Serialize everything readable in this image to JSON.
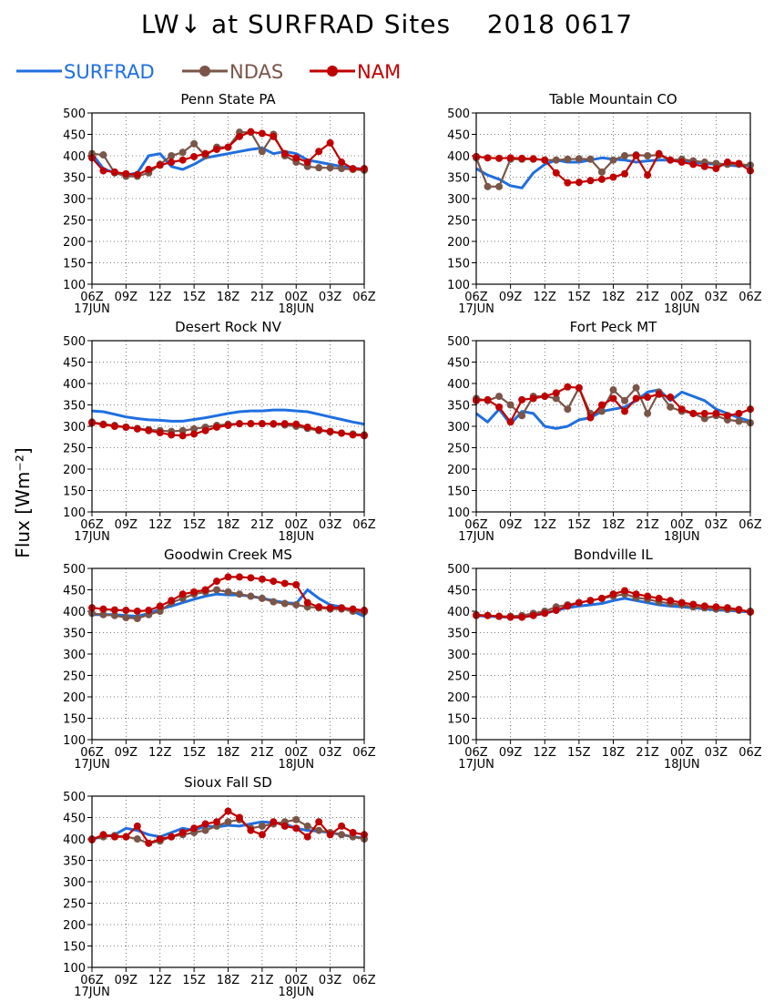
{
  "title": "LW↓ at SURFRAD Sites    2018 0617",
  "y_axis_title": "Flux [Wm⁻²]",
  "colors": {
    "SURFRAD": "#1f6fe0",
    "NDAS": "#7a5548",
    "NAM": "#c00000"
  },
  "legend": [
    {
      "name": "SURFRAD",
      "color": "#1f6fe0",
      "marker": false
    },
    {
      "name": "NDAS",
      "color": "#7a5548",
      "marker": true
    },
    {
      "name": "NAM",
      "color": "#c00000",
      "marker": true
    }
  ],
  "chart_data": [
    {
      "type": "line",
      "title": "Penn State PA",
      "x_tick_labels": [
        "06Z",
        "09Z",
        "12Z",
        "15Z",
        "18Z",
        "21Z",
        "00Z",
        "03Z",
        "06Z"
      ],
      "x_date_labels": [
        {
          "at": "06Z",
          "text": "17JUN"
        },
        {
          "at": "00Z",
          "text": "18JUN"
        }
      ],
      "x_hours": [
        0,
        1,
        2,
        3,
        4,
        5,
        6,
        7,
        8,
        9,
        10,
        11,
        12,
        13,
        14,
        15,
        16,
        17,
        18,
        19,
        20,
        21,
        22,
        23,
        24
      ],
      "ylim": [
        100,
        500
      ],
      "y_ticks": [
        100,
        150,
        200,
        250,
        300,
        350,
        400,
        450,
        500
      ],
      "grid": true,
      "series": [
        {
          "name": "SURFRAD",
          "values": [
            405,
            370,
            360,
            355,
            360,
            400,
            405,
            375,
            368,
            380,
            395,
            400,
            405,
            410,
            415,
            418,
            405,
            410,
            405,
            390,
            385,
            380,
            375,
            372,
            368
          ]
        },
        {
          "name": "NDAS",
          "values": [
            405,
            402,
            360,
            352,
            352,
            360,
            380,
            400,
            408,
            428,
            400,
            420,
            420,
            455,
            455,
            410,
            450,
            400,
            385,
            375,
            372,
            372,
            370,
            368,
            366
          ]
        },
        {
          "name": "NAM",
          "values": [
            395,
            365,
            362,
            358,
            356,
            368,
            378,
            385,
            390,
            398,
            405,
            415,
            420,
            445,
            456,
            452,
            445,
            405,
            395,
            385,
            410,
            430,
            385,
            370,
            370
          ]
        }
      ]
    },
    {
      "type": "line",
      "title": "Table Mountain CO",
      "x_tick_labels": [
        "06Z",
        "09Z",
        "12Z",
        "15Z",
        "18Z",
        "21Z",
        "00Z",
        "03Z",
        "06Z"
      ],
      "x_date_labels": [
        {
          "at": "06Z",
          "text": "17JUN"
        },
        {
          "at": "00Z",
          "text": "18JUN"
        }
      ],
      "x_hours": [
        0,
        1,
        2,
        3,
        4,
        5,
        6,
        7,
        8,
        9,
        10,
        11,
        12,
        13,
        14,
        15,
        16,
        17,
        18,
        19,
        20,
        21,
        22,
        23,
        24
      ],
      "ylim": [
        100,
        500
      ],
      "y_ticks": [
        100,
        150,
        200,
        250,
        300,
        350,
        400,
        450,
        500
      ],
      "grid": true,
      "series": [
        {
          "name": "SURFRAD",
          "values": [
            370,
            355,
            345,
            330,
            325,
            360,
            380,
            390,
            385,
            385,
            390,
            395,
            392,
            390,
            385,
            388,
            390,
            390,
            385,
            385,
            382,
            380,
            378,
            376,
            378
          ]
        },
        {
          "name": "NDAS",
          "values": [
            395,
            328,
            328,
            392,
            392,
            392,
            390,
            390,
            392,
            393,
            392,
            362,
            390,
            400,
            402,
            400,
            402,
            390,
            392,
            388,
            385,
            382,
            380,
            380,
            378
          ]
        },
        {
          "name": "NAM",
          "values": [
            398,
            395,
            394,
            395,
            394,
            393,
            390,
            360,
            337,
            338,
            342,
            345,
            350,
            358,
            400,
            355,
            405,
            390,
            385,
            380,
            375,
            370,
            385,
            382,
            365
          ]
        }
      ]
    },
    {
      "type": "line",
      "title": "Desert Rock NV",
      "x_tick_labels": [
        "06Z",
        "09Z",
        "12Z",
        "15Z",
        "18Z",
        "21Z",
        "00Z",
        "03Z",
        "06Z"
      ],
      "x_date_labels": [
        {
          "at": "06Z",
          "text": "17JUN"
        },
        {
          "at": "00Z",
          "text": "18JUN"
        }
      ],
      "x_hours": [
        0,
        1,
        2,
        3,
        4,
        5,
        6,
        7,
        8,
        9,
        10,
        11,
        12,
        13,
        14,
        15,
        16,
        17,
        18,
        19,
        20,
        21,
        22,
        23,
        24
      ],
      "ylim": [
        100,
        500
      ],
      "y_ticks": [
        100,
        150,
        200,
        250,
        300,
        350,
        400,
        450,
        500
      ],
      "grid": true,
      "series": [
        {
          "name": "SURFRAD",
          "values": [
            336,
            334,
            328,
            322,
            318,
            315,
            314,
            312,
            312,
            316,
            320,
            325,
            330,
            334,
            336,
            336,
            338,
            338,
            336,
            334,
            328,
            322,
            316,
            310,
            305
          ]
        },
        {
          "name": "NDAS",
          "values": [
            310,
            305,
            302,
            298,
            295,
            292,
            290,
            288,
            290,
            294,
            298,
            302,
            305,
            306,
            306,
            306,
            305,
            303,
            300,
            295,
            290,
            287,
            284,
            282,
            280
          ]
        },
        {
          "name": "NAM",
          "values": [
            308,
            304,
            300,
            298,
            294,
            290,
            285,
            280,
            278,
            282,
            290,
            298,
            302,
            306,
            306,
            306,
            306,
            306,
            305,
            298,
            292,
            288,
            284,
            280,
            278
          ]
        }
      ]
    },
    {
      "type": "line",
      "title": "Fort Peck MT",
      "x_tick_labels": [
        "06Z",
        "09Z",
        "12Z",
        "15Z",
        "18Z",
        "21Z",
        "00Z",
        "03Z",
        "06Z"
      ],
      "x_date_labels": [
        {
          "at": "06Z",
          "text": "17JUN"
        },
        {
          "at": "00Z",
          "text": "18JUN"
        }
      ],
      "x_hours": [
        0,
        1,
        2,
        3,
        4,
        5,
        6,
        7,
        8,
        9,
        10,
        11,
        12,
        13,
        14,
        15,
        16,
        17,
        18,
        19,
        20,
        21,
        22,
        23,
        24
      ],
      "ylim": [
        100,
        500
      ],
      "y_ticks": [
        100,
        150,
        200,
        250,
        300,
        350,
        400,
        450,
        500
      ],
      "grid": true,
      "series": [
        {
          "name": "SURFRAD",
          "values": [
            330,
            310,
            340,
            305,
            335,
            330,
            300,
            295,
            300,
            315,
            320,
            335,
            340,
            345,
            360,
            380,
            385,
            360,
            380,
            370,
            360,
            340,
            330,
            320,
            312
          ]
        },
        {
          "name": "NDAS",
          "values": [
            365,
            360,
            370,
            350,
            325,
            370,
            370,
            365,
            340,
            390,
            330,
            335,
            385,
            360,
            390,
            330,
            380,
            345,
            335,
            330,
            318,
            325,
            315,
            312,
            308
          ]
        },
        {
          "name": "NAM",
          "values": [
            360,
            362,
            345,
            310,
            362,
            365,
            370,
            378,
            392,
            390,
            320,
            350,
            365,
            335,
            365,
            368,
            375,
            368,
            340,
            330,
            330,
            330,
            325,
            330,
            340
          ]
        }
      ]
    },
    {
      "type": "line",
      "title": "Goodwin Creek MS",
      "x_tick_labels": [
        "06Z",
        "09Z",
        "12Z",
        "15Z",
        "18Z",
        "21Z",
        "00Z",
        "03Z",
        "06Z"
      ],
      "x_date_labels": [
        {
          "at": "06Z",
          "text": "17JUN"
        },
        {
          "at": "00Z",
          "text": "18JUN"
        }
      ],
      "x_hours": [
        0,
        1,
        2,
        3,
        4,
        5,
        6,
        7,
        8,
        9,
        10,
        11,
        12,
        13,
        14,
        15,
        16,
        17,
        18,
        19,
        20,
        21,
        22,
        23,
        24
      ],
      "ylim": [
        100,
        500
      ],
      "y_ticks": [
        100,
        150,
        200,
        250,
        300,
        350,
        400,
        450,
        500
      ],
      "grid": true,
      "series": [
        {
          "name": "SURFRAD",
          "values": [
            392,
            392,
            392,
            390,
            388,
            395,
            405,
            412,
            420,
            428,
            435,
            440,
            438,
            438,
            435,
            430,
            425,
            420,
            418,
            450,
            430,
            415,
            410,
            400,
            388
          ]
        },
        {
          "name": "NDAS",
          "values": [
            395,
            392,
            390,
            385,
            383,
            392,
            400,
            420,
            430,
            440,
            445,
            450,
            445,
            440,
            435,
            430,
            422,
            418,
            415,
            410,
            408,
            405,
            405,
            400,
            398
          ]
        },
        {
          "name": "NAM",
          "values": [
            408,
            405,
            403,
            402,
            400,
            402,
            412,
            425,
            440,
            445,
            450,
            470,
            480,
            480,
            478,
            475,
            470,
            465,
            462,
            420,
            410,
            408,
            408,
            405,
            402
          ]
        }
      ]
    },
    {
      "type": "line",
      "title": "Bondville IL",
      "x_tick_labels": [
        "06Z",
        "09Z",
        "12Z",
        "15Z",
        "18Z",
        "21Z",
        "00Z",
        "03Z",
        "06Z"
      ],
      "x_date_labels": [
        {
          "at": "06Z",
          "text": "17JUN"
        },
        {
          "at": "00Z",
          "text": "18JUN"
        }
      ],
      "x_hours": [
        0,
        1,
        2,
        3,
        4,
        5,
        6,
        7,
        8,
        9,
        10,
        11,
        12,
        13,
        14,
        15,
        16,
        17,
        18,
        19,
        20,
        21,
        22,
        23,
        24
      ],
      "ylim": [
        100,
        500
      ],
      "y_ticks": [
        100,
        150,
        200,
        250,
        300,
        350,
        400,
        450,
        500
      ],
      "grid": true,
      "series": [
        {
          "name": "SURFRAD",
          "values": [
            390,
            388,
            387,
            386,
            386,
            390,
            395,
            402,
            408,
            412,
            415,
            418,
            425,
            430,
            425,
            420,
            415,
            412,
            410,
            408,
            405,
            403,
            402,
            400,
            398
          ]
        },
        {
          "name": "NDAS",
          "values": [
            392,
            390,
            388,
            388,
            390,
            395,
            400,
            410,
            415,
            420,
            425,
            430,
            435,
            440,
            432,
            428,
            422,
            418,
            415,
            410,
            408,
            405,
            404,
            402,
            400
          ]
        },
        {
          "name": "NAM",
          "values": [
            390,
            390,
            388,
            386,
            386,
            390,
            395,
            402,
            412,
            420,
            425,
            430,
            440,
            448,
            440,
            435,
            430,
            425,
            420,
            416,
            412,
            410,
            408,
            404,
            398
          ]
        }
      ]
    },
    {
      "type": "line",
      "title": "Sioux Fall SD",
      "x_tick_labels": [
        "06Z",
        "09Z",
        "12Z",
        "15Z",
        "18Z",
        "21Z",
        "00Z",
        "03Z",
        "06Z"
      ],
      "x_date_labels": [
        {
          "at": "06Z",
          "text": "17JUN"
        },
        {
          "at": "00Z",
          "text": "18JUN"
        }
      ],
      "x_hours": [
        0,
        1,
        2,
        3,
        4,
        5,
        6,
        7,
        8,
        9,
        10,
        11,
        12,
        13,
        14,
        15,
        16,
        17,
        18,
        19,
        20,
        21,
        22,
        23,
        24
      ],
      "ylim": [
        100,
        500
      ],
      "y_ticks": [
        100,
        150,
        200,
        250,
        300,
        350,
        400,
        450,
        500
      ],
      "grid": true,
      "series": [
        {
          "name": "SURFRAD",
          "values": [
            400,
            405,
            410,
            425,
            420,
            410,
            405,
            415,
            425,
            420,
            430,
            428,
            432,
            430,
            435,
            440,
            438,
            435,
            425,
            420,
            418,
            415,
            410,
            405,
            402
          ]
        },
        {
          "name": "NDAS",
          "values": [
            400,
            405,
            408,
            405,
            400,
            390,
            395,
            405,
            410,
            415,
            420,
            430,
            440,
            445,
            425,
            430,
            435,
            440,
            445,
            430,
            420,
            415,
            410,
            405,
            400
          ]
        },
        {
          "name": "NAM",
          "values": [
            398,
            410,
            405,
            405,
            430,
            390,
            400,
            405,
            415,
            425,
            435,
            440,
            465,
            450,
            420,
            410,
            440,
            430,
            425,
            405,
            440,
            410,
            430,
            415,
            410
          ]
        }
      ]
    }
  ]
}
